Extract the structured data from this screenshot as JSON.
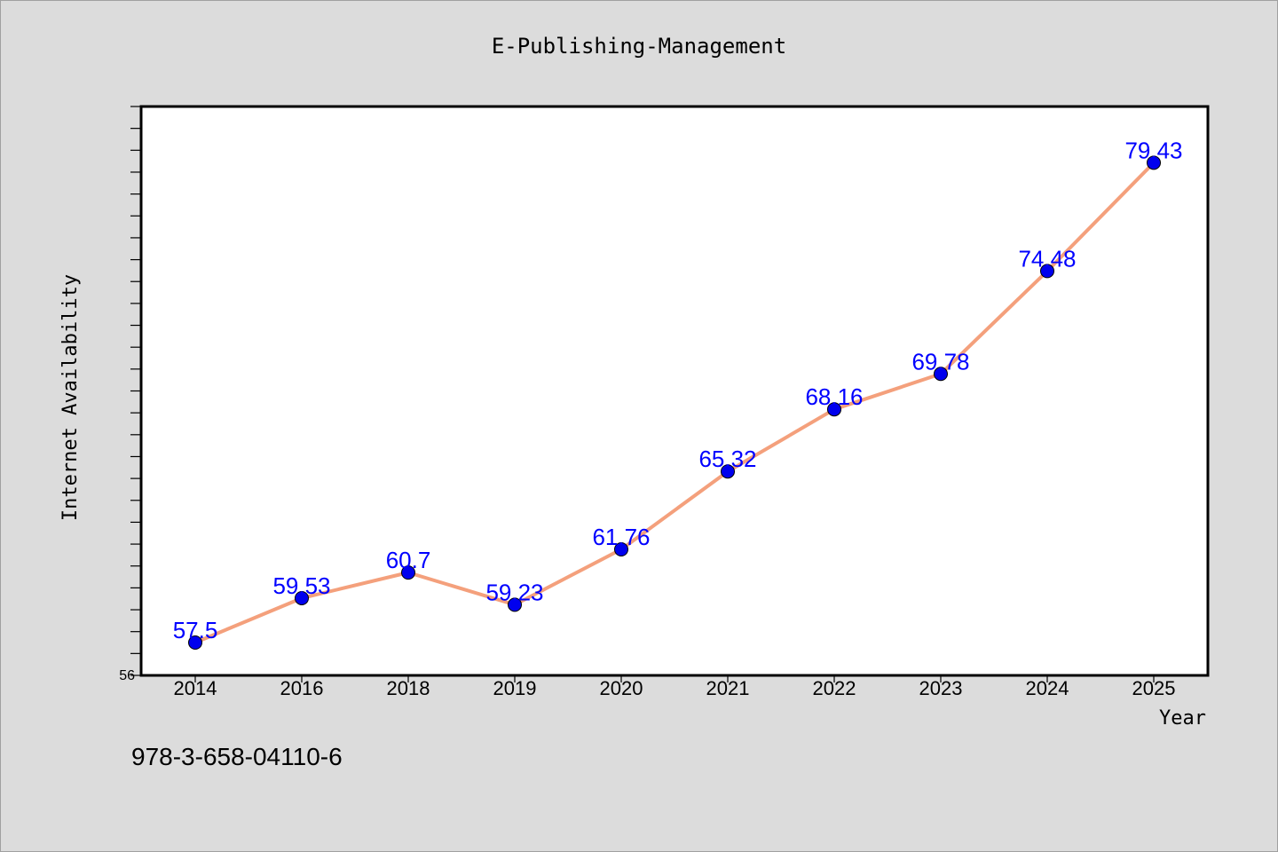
{
  "chart_data": {
    "type": "line",
    "title": "E-Publishing-Management",
    "xlabel": "Year",
    "ylabel": "Internet Availability",
    "categories": [
      "2014",
      "2016",
      "2018",
      "2019",
      "2020",
      "2021",
      "2022",
      "2023",
      "2024",
      "2025"
    ],
    "series": [
      {
        "values": [
          57.5,
          59.53,
          60.7,
          59.23,
          61.76,
          65.32,
          68.16,
          69.78,
          74.48,
          79.43
        ],
        "labels": [
          "57.5",
          "59.53",
          "60.7",
          "59.23",
          "61.76",
          "65.32",
          "68.16",
          "69.78",
          "74.48",
          "79.43"
        ],
        "line_color": "#f4a07c",
        "marker_color": "#0000ee"
      }
    ],
    "ylim": [
      56,
      82
    ],
    "y_tick_labels_shown": [
      "56"
    ],
    "grid": false,
    "legend": "none",
    "footnote": "978-3-658-04110-6"
  },
  "colors": {
    "background": "#dcdcdc",
    "plot_background": "#ffffff",
    "data_label": "#0000ff"
  }
}
